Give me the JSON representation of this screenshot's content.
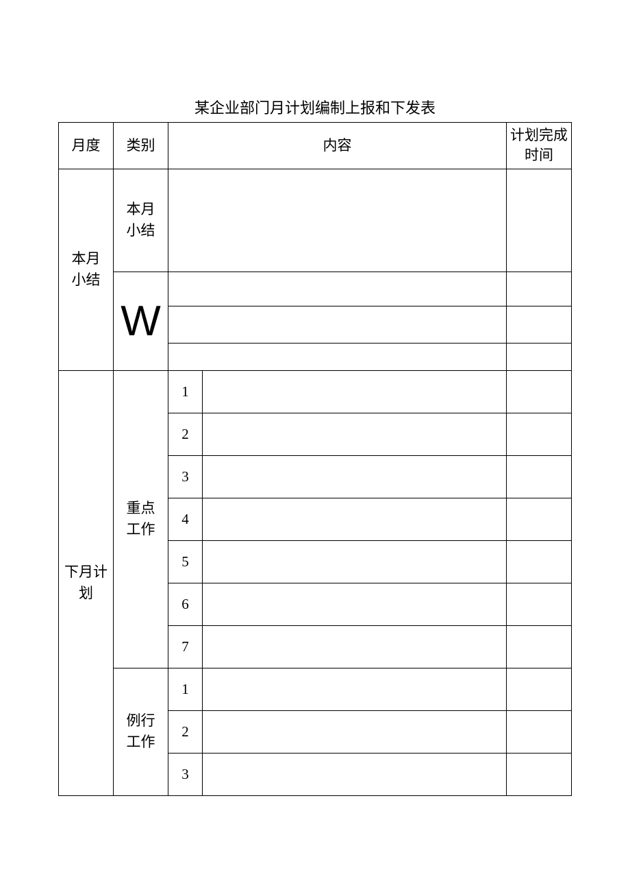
{
  "title": "某企业部门月计划编制上报和下发表",
  "headers": {
    "month": "月度",
    "category": "类别",
    "content": "内容",
    "planTime": "计划完成\n时间"
  },
  "sections": {
    "thisMonthSummary": {
      "monthLabel": "本月\n小结",
      "categoryA": "本月\n小结",
      "categoryB": "W",
      "bRowCount": 3
    },
    "nextMonthPlan": {
      "monthLabel": "下月计\n划",
      "keyWork": {
        "label": "重点\n工作",
        "items": [
          "1",
          "2",
          "3",
          "4",
          "5",
          "6",
          "7"
        ]
      },
      "routineWork": {
        "label": "例行\n工作",
        "items": [
          "1",
          "2",
          "3"
        ]
      }
    }
  },
  "style": {
    "background_color": "#ffffff",
    "border_color": "#000000",
    "text_color": "#000000",
    "title_fontsize": 22,
    "cell_fontsize": 21,
    "w_fontsize": 62,
    "font_family": "SimSun",
    "w_font_family": "Arial"
  }
}
